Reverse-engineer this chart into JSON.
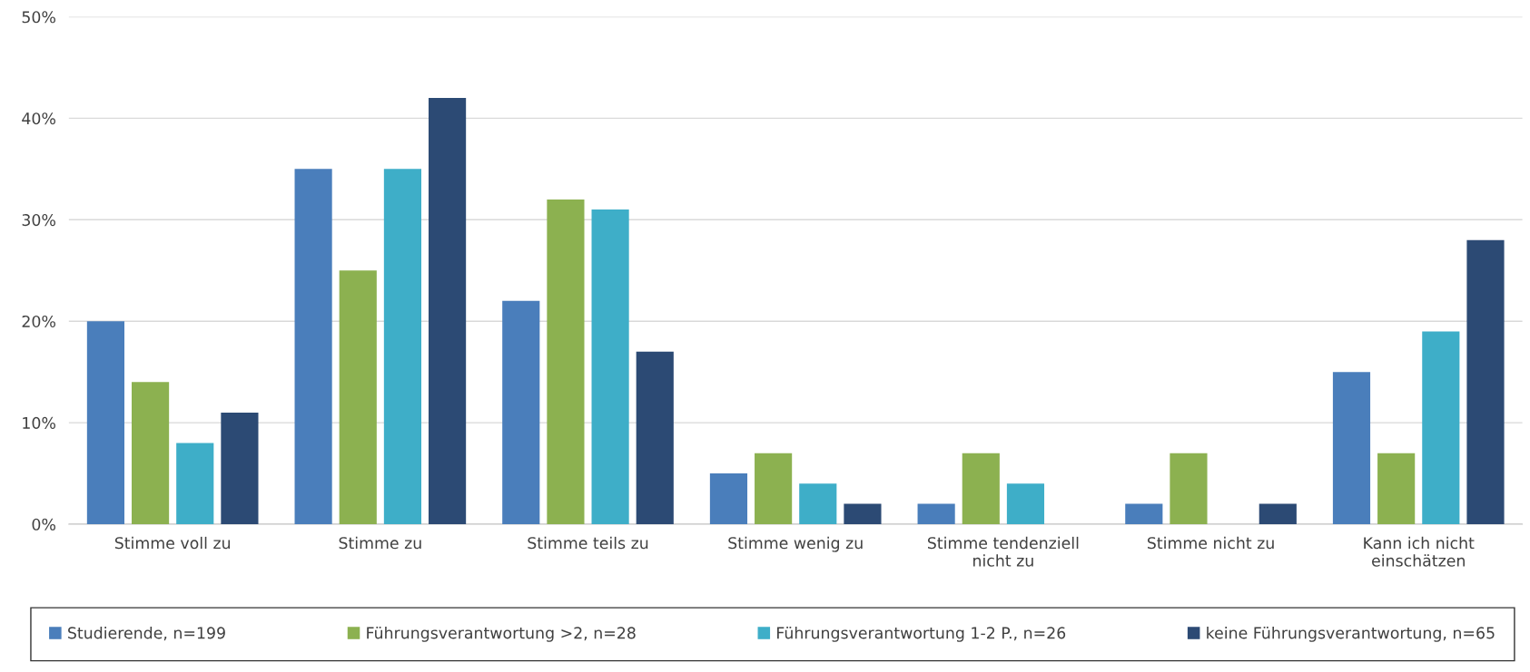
{
  "chart_data": {
    "type": "bar",
    "categories": [
      "Stimme voll zu",
      "Stimme zu",
      "Stimme teils zu",
      "Stimme wenig zu",
      "Stimme tendenziell\nnicht zu",
      "Stimme nicht zu",
      "Kann ich nicht\neinschätzen"
    ],
    "series": [
      {
        "name": "Studierende, n=199",
        "color": "#4a7ebb",
        "values": [
          20,
          35,
          22,
          5,
          2,
          2,
          15
        ]
      },
      {
        "name": "Führungsverantwortung >2, n=28",
        "color": "#8cb150",
        "values": [
          14,
          25,
          32,
          7,
          7,
          7,
          7
        ]
      },
      {
        "name": "Führungsverantwortung 1-2 P., n=26",
        "color": "#3eaec8",
        "values": [
          8,
          35,
          31,
          4,
          4,
          0,
          19
        ]
      },
      {
        "name": "keine Führungsverantwortung, n=65",
        "color": "#2c4a74",
        "values": [
          11,
          42,
          17,
          2,
          0,
          2,
          28
        ]
      }
    ],
    "ylim": [
      0,
      50
    ],
    "yticks": [
      {
        "value": 0,
        "label": "0%"
      },
      {
        "value": 10,
        "label": "10%"
      },
      {
        "value": 20,
        "label": "20%"
      },
      {
        "value": 30,
        "label": "30%"
      },
      {
        "value": 40,
        "label": "40%"
      },
      {
        "value": 50,
        "label": "50%"
      }
    ],
    "grid": "y",
    "legend": "bottom"
  }
}
